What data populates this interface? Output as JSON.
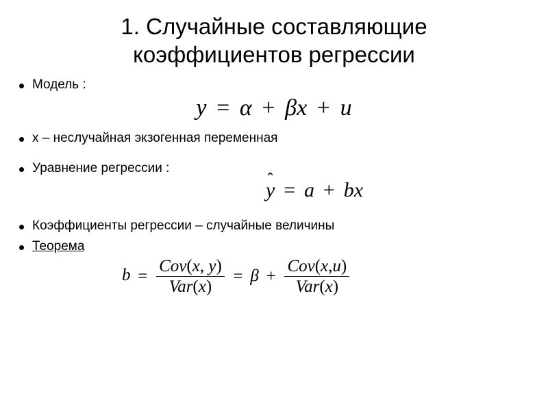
{
  "title_line1": "1. Случайные составляющие",
  "title_line2": "коэффициентов регрессии",
  "bullets": {
    "b1": "Модель :",
    "b2": "х – неслучайная экзогенная переменная",
    "b3": "Уравнение регрессии :",
    "b4": "Коэффициенты регрессии – случайные величины",
    "b5": "Теорема"
  },
  "formulas": {
    "model": {
      "y": "y",
      "eq": "=",
      "alpha": "α",
      "plus": "+",
      "beta": "β",
      "x": "x",
      "u": "u"
    },
    "regression": {
      "yhat": "y",
      "hat": "ˆ",
      "eq": "=",
      "a": "a",
      "plus": "+",
      "b": "b",
      "x": "x"
    },
    "theorem": {
      "b": "b",
      "eq": "=",
      "cov": "Cov",
      "var": "Var",
      "lp": "(",
      "rp": ")",
      "comma": ",",
      "x": "x",
      "y": "y",
      "u": "u",
      "beta": "β",
      "plus": "+"
    }
  },
  "style": {
    "background": "#ffffff",
    "text_color": "#000000",
    "title_fontsize": 33,
    "bullet_fontsize": 19,
    "formula_large": 34,
    "formula_med": 30,
    "formula_small": 25,
    "body_font": "Arial",
    "math_font": "Times New Roman"
  }
}
